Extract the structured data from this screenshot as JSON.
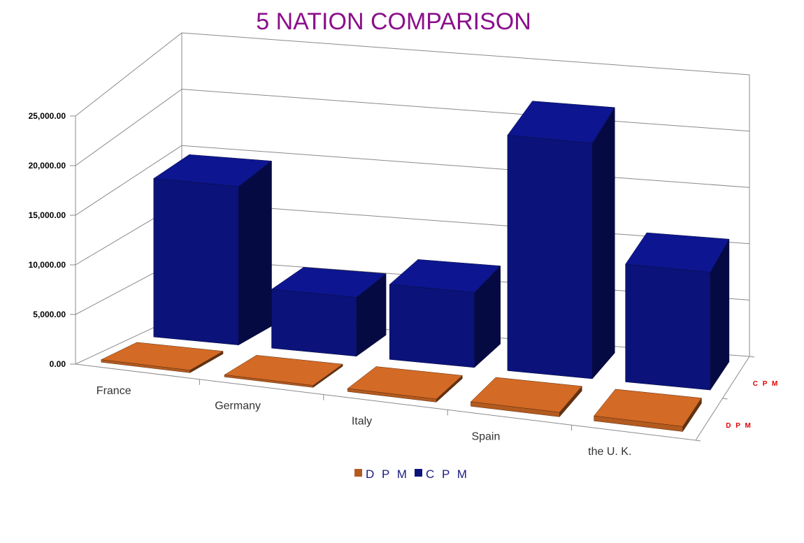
{
  "chart_data": {
    "type": "bar",
    "variant": "3d-column-series-depth",
    "title": "5 NATION COMPARISON",
    "categories": [
      "France",
      "Germany",
      "Italy",
      "Spain",
      "the U. K."
    ],
    "series": [
      {
        "name": "D P M",
        "axis_label": "D P M",
        "color": "#b35a1f",
        "values": [
          250,
          60,
          300,
          450,
          500
        ]
      },
      {
        "name": "C P M",
        "axis_label": "C P M",
        "color": "#0b137a",
        "values": [
          14800,
          5500,
          7000,
          22000,
          11000
        ]
      }
    ],
    "y_ticks": [
      "0.00",
      "5,000.00",
      "10,000.00",
      "15,000.00",
      "20,000.00",
      "25,000.00"
    ],
    "ylim": [
      0,
      25000
    ],
    "grid": true,
    "legend_position": "bottom"
  }
}
